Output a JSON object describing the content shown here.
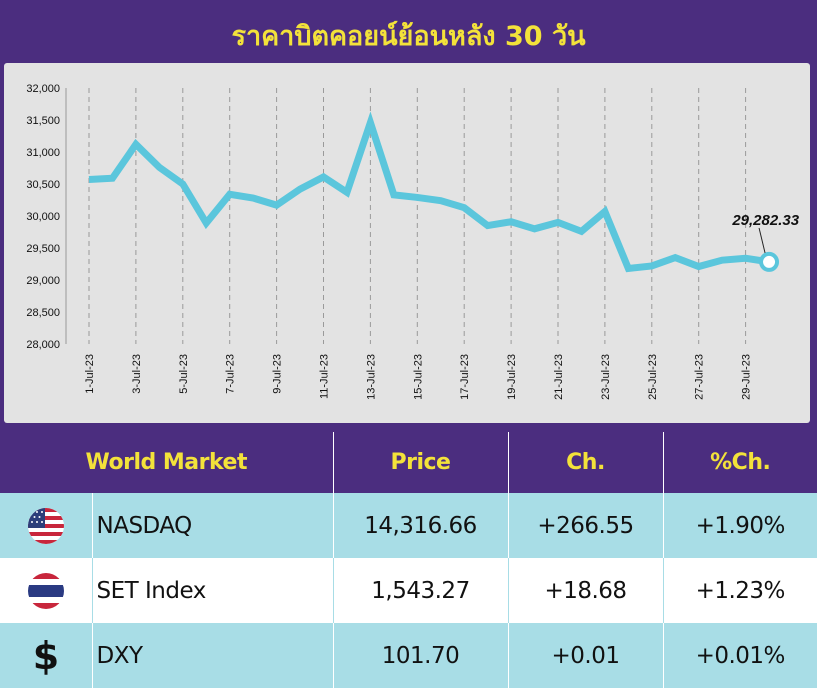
{
  "title": "ราคาบิตคอยน์ย้อนหลัง 30 วัน",
  "chart_data": {
    "type": "line",
    "title": "ราคาบิตคอยน์ย้อนหลัง 30 วัน",
    "xlabel": "",
    "ylabel": "",
    "ylim": [
      28000,
      32000
    ],
    "yticks": [
      28000,
      28500,
      29000,
      29500,
      30000,
      30500,
      31000,
      31500,
      32000
    ],
    "ytick_labels": [
      "28,000",
      "28,500",
      "29,000",
      "29,500",
      "30,000",
      "30,500",
      "31,000",
      "31,500",
      "32,000"
    ],
    "grid": "vertical dashed",
    "line_color": "#5bc6dc",
    "x": [
      "1-Jul-23",
      "2-Jul-23",
      "3-Jul-23",
      "4-Jul-23",
      "5-Jul-23",
      "6-Jul-23",
      "7-Jul-23",
      "8-Jul-23",
      "9-Jul-23",
      "10-Jul-23",
      "11-Jul-23",
      "12-Jul-23",
      "13-Jul-23",
      "14-Jul-23",
      "15-Jul-23",
      "16-Jul-23",
      "17-Jul-23",
      "18-Jul-23",
      "19-Jul-23",
      "20-Jul-23",
      "21-Jul-23",
      "22-Jul-23",
      "23-Jul-23",
      "24-Jul-23",
      "25-Jul-23",
      "26-Jul-23",
      "27-Jul-23",
      "28-Jul-23",
      "29-Jul-23",
      "30-Jul-23"
    ],
    "x_tick_labels": [
      "1-Jul-23",
      "3-Jul-23",
      "5-Jul-23",
      "7-Jul-23",
      "9-Jul-23",
      "11-Jul-23",
      "13-Jul-23",
      "15-Jul-23",
      "17-Jul-23",
      "19-Jul-23",
      "21-Jul-23",
      "23-Jul-23",
      "25-Jul-23",
      "27-Jul-23",
      "29-Jul-23"
    ],
    "values": [
      30570,
      30590,
      31120,
      30760,
      30500,
      29890,
      30340,
      30280,
      30170,
      30420,
      30610,
      30370,
      31460,
      30330,
      30290,
      30240,
      30130,
      29850,
      29910,
      29800,
      29900,
      29760,
      30070,
      29180,
      29220,
      29350,
      29210,
      29310,
      29340,
      29282.33
    ],
    "last_value_label": "29,282.33"
  },
  "table": {
    "headers": [
      "World Market",
      "Price",
      "Ch.",
      "%Ch."
    ],
    "rows": [
      {
        "icon": "us-flag-icon",
        "name": "NASDAQ",
        "price": "14,316.66",
        "ch": "+266.55",
        "pch": "+1.90%"
      },
      {
        "icon": "thai-flag-icon",
        "name": "SET Index",
        "price": "1,543.27",
        "ch": "+18.68",
        "pch": "+1.23%"
      },
      {
        "icon": "dollar-icon",
        "symbol": "$",
        "name": "DXY",
        "price": "101.70",
        "ch": "+0.01",
        "pch": "+0.01%"
      }
    ]
  },
  "colors": {
    "header_bg": "#4b2d7f",
    "header_text": "#f3e23a",
    "row_blue": "#a8dde6",
    "line": "#5bc6dc"
  }
}
